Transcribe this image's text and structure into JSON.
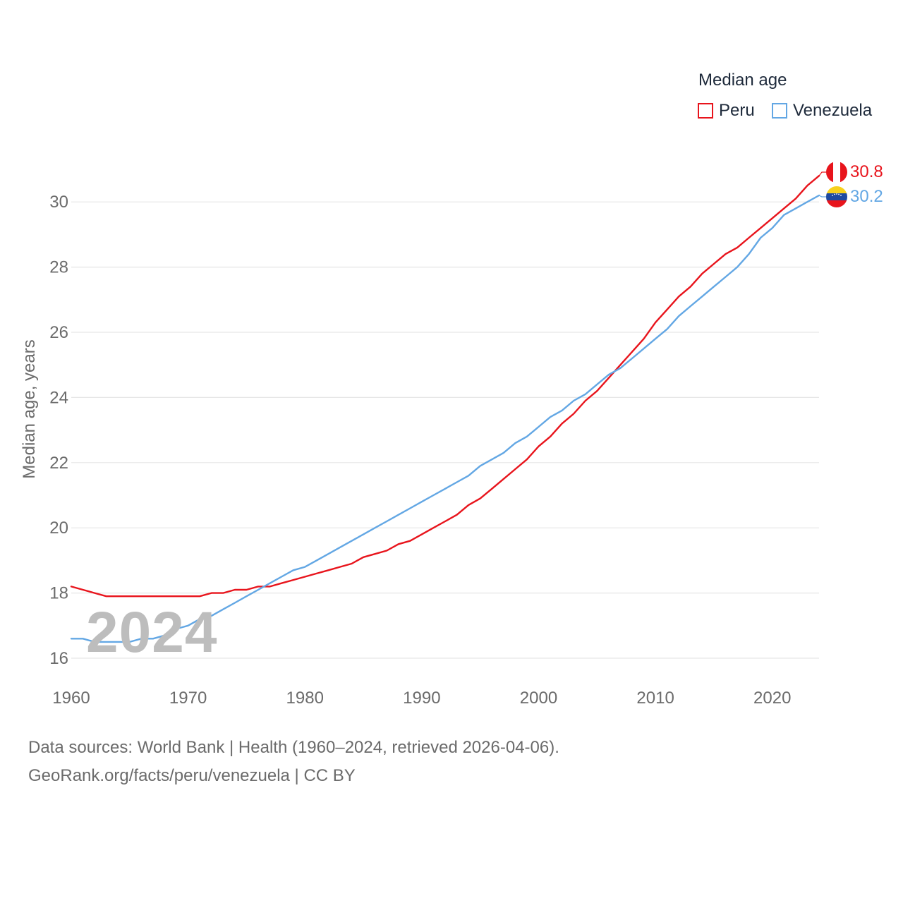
{
  "legend": {
    "title": "Median age",
    "items": [
      {
        "name": "Peru",
        "color": "#e8141c"
      },
      {
        "name": "Venezuela",
        "color": "#63a7e4"
      }
    ]
  },
  "current_year": "2024",
  "footer": {
    "line1": "Data sources: World Bank | Health (1960–2024, retrieved 2026-04-06).",
    "line2": "GeoRank.org/facts/peru/venezuela | CC BY"
  },
  "chart_data": {
    "type": "line",
    "title": "Median age",
    "xlabel": "",
    "ylabel": "Median age, years",
    "xlim": [
      1960,
      2024
    ],
    "ylim": [
      16,
      31
    ],
    "xticks": [
      1960,
      1970,
      1980,
      1990,
      2000,
      2010,
      2020
    ],
    "yticks": [
      16,
      18,
      20,
      22,
      24,
      26,
      28,
      30
    ],
    "grid": true,
    "legend_position": "top-right",
    "x": [
      1960,
      1961,
      1962,
      1963,
      1964,
      1965,
      1966,
      1967,
      1968,
      1969,
      1970,
      1971,
      1972,
      1973,
      1974,
      1975,
      1976,
      1977,
      1978,
      1979,
      1980,
      1981,
      1982,
      1983,
      1984,
      1985,
      1986,
      1987,
      1988,
      1989,
      1990,
      1991,
      1992,
      1993,
      1994,
      1995,
      1996,
      1997,
      1998,
      1999,
      2000,
      2001,
      2002,
      2003,
      2004,
      2005,
      2006,
      2007,
      2008,
      2009,
      2010,
      2011,
      2012,
      2013,
      2014,
      2015,
      2016,
      2017,
      2018,
      2019,
      2020,
      2021,
      2022,
      2023,
      2024
    ],
    "series": [
      {
        "name": "Peru",
        "color": "#e8141c",
        "end_label": "30.8",
        "values": [
          18.2,
          18.1,
          18.0,
          17.9,
          17.9,
          17.9,
          17.9,
          17.9,
          17.9,
          17.9,
          17.9,
          17.9,
          18.0,
          18.0,
          18.1,
          18.1,
          18.2,
          18.2,
          18.3,
          18.4,
          18.5,
          18.6,
          18.7,
          18.8,
          18.9,
          19.1,
          19.2,
          19.3,
          19.5,
          19.6,
          19.8,
          20.0,
          20.2,
          20.4,
          20.7,
          20.9,
          21.2,
          21.5,
          21.8,
          22.1,
          22.5,
          22.8,
          23.2,
          23.5,
          23.9,
          24.2,
          24.6,
          25.0,
          25.4,
          25.8,
          26.3,
          26.7,
          27.1,
          27.4,
          27.8,
          28.1,
          28.4,
          28.6,
          28.9,
          29.2,
          29.5,
          29.8,
          30.1,
          30.5,
          30.8
        ]
      },
      {
        "name": "Venezuela",
        "color": "#63a7e4",
        "end_label": "30.2",
        "values": [
          16.6,
          16.6,
          16.5,
          16.5,
          16.5,
          16.5,
          16.6,
          16.6,
          16.7,
          16.9,
          17.0,
          17.2,
          17.3,
          17.5,
          17.7,
          17.9,
          18.1,
          18.3,
          18.5,
          18.7,
          18.8,
          19.0,
          19.2,
          19.4,
          19.6,
          19.8,
          20.0,
          20.2,
          20.4,
          20.6,
          20.8,
          21.0,
          21.2,
          21.4,
          21.6,
          21.9,
          22.1,
          22.3,
          22.6,
          22.8,
          23.1,
          23.4,
          23.6,
          23.9,
          24.1,
          24.4,
          24.7,
          24.9,
          25.2,
          25.5,
          25.8,
          26.1,
          26.5,
          26.8,
          27.1,
          27.4,
          27.7,
          28.0,
          28.4,
          28.9,
          29.2,
          29.6,
          29.8,
          30.0,
          30.2
        ]
      }
    ]
  }
}
